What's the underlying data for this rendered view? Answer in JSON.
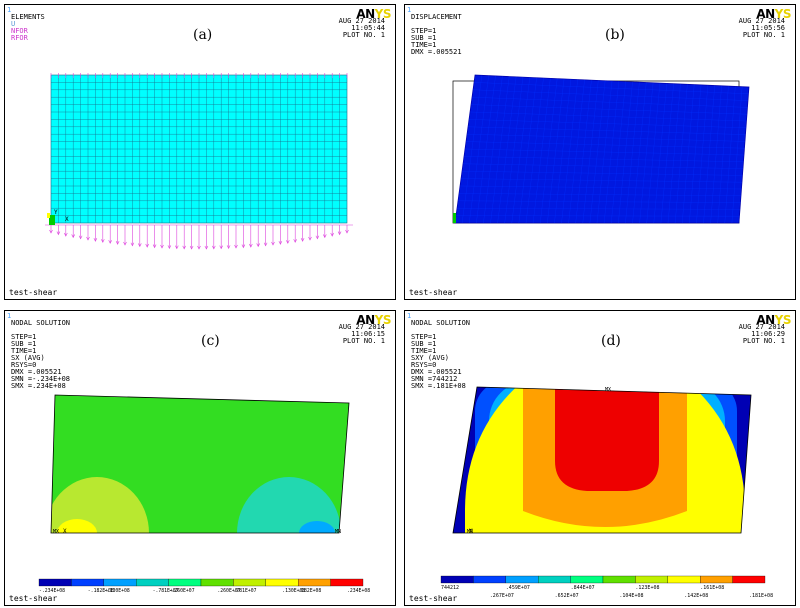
{
  "panels": [
    {
      "id": "a",
      "caption": "(a)",
      "header_lines": [
        "ELEMENTS"
      ],
      "header_extra": [
        {
          "text": "U",
          "color": "#5b9bd5"
        },
        {
          "text": "NFOR",
          "color": "#cc33cc"
        },
        {
          "text": "RFOR",
          "color": "#cc33cc"
        }
      ],
      "date": "AUG 27 2014",
      "time": "11:05:44",
      "plot": "PLOT NO.   1",
      "footer": "test-shear"
    },
    {
      "id": "b",
      "caption": "(b)",
      "header_lines": [
        "DISPLACEMENT",
        "",
        "STEP=1",
        "SUB =1",
        "TIME=1",
        "DMX =.005521"
      ],
      "date": "AUG 27 2014",
      "time": "11:05:56",
      "plot": "PLOT NO.   1",
      "footer": "test-shear"
    },
    {
      "id": "c",
      "caption": "(c)",
      "header_lines": [
        "NODAL SOLUTION",
        "",
        "STEP=1",
        "SUB =1",
        "TIME=1",
        "SX       (AVG)",
        "RSYS=0",
        "DMX =.005521",
        "SMN =-.234E+08",
        "SMX =.234E+08"
      ],
      "date": "AUG 27 2014",
      "time": "11:06:15",
      "plot": "PLOT NO.   1",
      "footer": "test-shear",
      "node_labels": [
        "MX",
        "MN"
      ],
      "legend_top": [
        "-.234E+08",
        "-.130E+08",
        "-.260E+07",
        ".781E+07",
        ".182E+08"
      ],
      "legend_bottom": [
        "-.182E+08",
        "-.781E+07",
        ".260E+07",
        ".130E+08",
        ".234E+08"
      ],
      "legend_colors": [
        "#0000b4",
        "#0040ff",
        "#00a0ff",
        "#00d0c0",
        "#00ff80",
        "#60e000",
        "#c0f000",
        "#ffff00",
        "#ffa000",
        "#ff0000"
      ]
    },
    {
      "id": "d",
      "caption": "(d)",
      "header_lines": [
        "NODAL SOLUTION",
        "",
        "STEP=1",
        "SUB =1",
        "TIME=1",
        "SXY      (AVG)",
        "RSYS=0",
        "DMX =.005521",
        "SMN =744212",
        "SMX =.181E+08"
      ],
      "date": "AUG 27 2014",
      "time": "11:06:29",
      "plot": "PLOT NO.   1",
      "footer": "test-shear",
      "node_labels": [
        "MX",
        "MN"
      ],
      "legend_top": [
        "744212",
        ".459E+07",
        ".844E+07",
        ".123E+08",
        ".161E+08"
      ],
      "legend_bottom": [
        ".267E+07",
        ".652E+07",
        ".104E+08",
        ".142E+08",
        ".181E+08"
      ],
      "legend_colors": [
        "#0000b4",
        "#0040ff",
        "#00a0ff",
        "#00d0c0",
        "#00ff80",
        "#60e000",
        "#c0f000",
        "#ffff00",
        "#ffa000",
        "#ff0000"
      ]
    }
  ],
  "logo": {
    "part1": "AN",
    "part2": "YS"
  },
  "colors": {
    "mesh_cyan": "#00ffff",
    "mesh_line": "#1a6b8a",
    "blue_fill": "#0018e0",
    "force_arrow": "#dd44dd"
  }
}
